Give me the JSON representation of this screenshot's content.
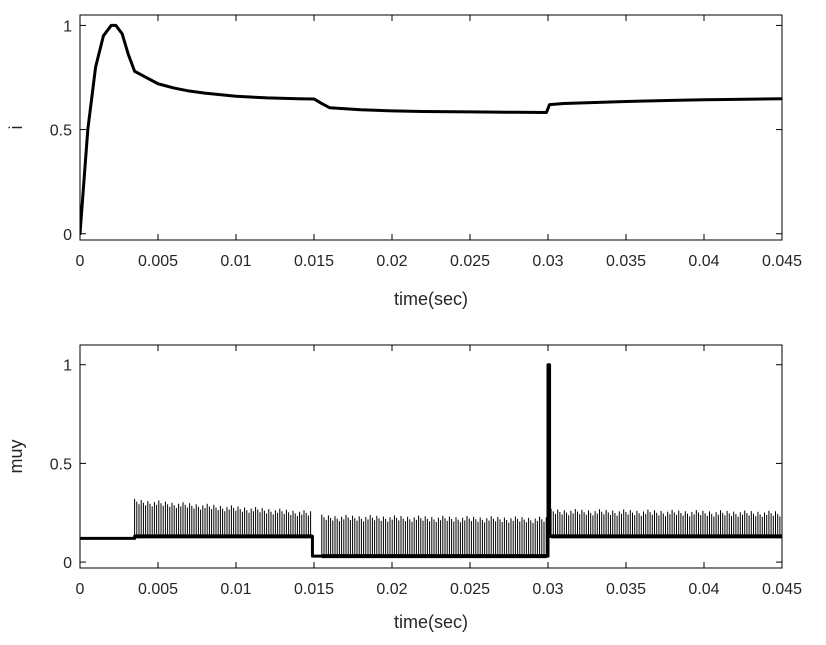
{
  "chart_data": [
    {
      "type": "line",
      "xlabel": "time(sec)",
      "ylabel": "i",
      "xlim": [
        0,
        0.045
      ],
      "ylim": [
        -0.03,
        1.05
      ],
      "xticks": [
        0,
        0.005,
        0.01,
        0.015,
        0.02,
        0.025,
        0.03,
        0.035,
        0.04,
        0.045
      ],
      "xtick_labels": [
        "0",
        "0.005",
        "0.01",
        "0.015",
        "0.02",
        "0.025",
        "0.03",
        "0.035",
        "0.04",
        "0.045"
      ],
      "yticks": [
        0,
        0.5,
        1
      ],
      "ytick_labels": [
        "0",
        "0.5",
        "1"
      ],
      "grid": false,
      "series": [
        {
          "x": [
            0,
            0.0005,
            0.001,
            0.0015,
            0.002,
            0.0023,
            0.0027,
            0.0031,
            0.0035,
            0.004,
            0.005,
            0.006,
            0.007,
            0.008,
            0.01,
            0.012,
            0.014,
            0.015,
            0.0155,
            0.016,
            0.018,
            0.02,
            0.022,
            0.025,
            0.028,
            0.0299,
            0.0301,
            0.031,
            0.033,
            0.035,
            0.038,
            0.04,
            0.042,
            0.045
          ],
          "y": [
            0,
            0.5,
            0.8,
            0.95,
            1.0,
            1.0,
            0.96,
            0.86,
            0.78,
            0.76,
            0.72,
            0.7,
            0.685,
            0.675,
            0.66,
            0.652,
            0.648,
            0.647,
            0.625,
            0.605,
            0.595,
            0.59,
            0.587,
            0.585,
            0.583,
            0.582,
            0.62,
            0.625,
            0.63,
            0.635,
            0.64,
            0.643,
            0.645,
            0.648
          ]
        }
      ]
    },
    {
      "type": "line",
      "xlabel": "time(sec)",
      "ylabel": "muy",
      "xlim": [
        0,
        0.045
      ],
      "ylim": [
        -0.03,
        1.1
      ],
      "xticks": [
        0,
        0.005,
        0.01,
        0.015,
        0.02,
        0.025,
        0.03,
        0.035,
        0.04,
        0.045
      ],
      "xtick_labels": [
        "0",
        "0.005",
        "0.01",
        "0.015",
        "0.02",
        "0.025",
        "0.03",
        "0.035",
        "0.04",
        "0.045"
      ],
      "yticks": [
        0,
        0.5,
        1
      ],
      "ytick_labels": [
        "0",
        "0.5",
        "1"
      ],
      "grid": false,
      "baseline": {
        "x": [
          0,
          0.0035,
          0.0035,
          0.0149,
          0.0149,
          0.0155,
          0.0155,
          0.03,
          0.03,
          0.0301,
          0.0301,
          0.045
        ],
        "y": [
          0.12,
          0.12,
          0.13,
          0.13,
          0.03,
          0.03,
          0.03,
          0.03,
          1.0,
          1.0,
          0.13,
          0.13
        ]
      },
      "oscillation_bands": [
        {
          "x_start": 0.0035,
          "x_end": 0.0149,
          "low": 0.13,
          "high_start": 0.32,
          "high_end": 0.26
        },
        {
          "x_start": 0.0155,
          "x_end": 0.0299,
          "low": 0.03,
          "high_start": 0.24,
          "high_end": 0.23
        },
        {
          "x_start": 0.0302,
          "x_end": 0.045,
          "low": 0.13,
          "high_start": 0.27,
          "high_end": 0.26
        }
      ]
    }
  ]
}
